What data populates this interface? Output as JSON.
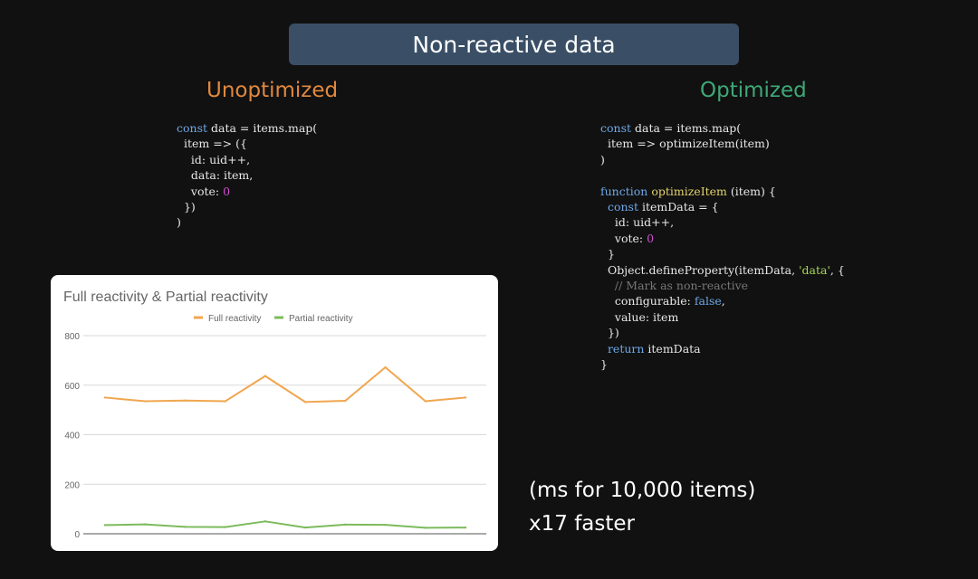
{
  "slide": {
    "title": "Non-reactive data",
    "left_heading": "Unoptimized",
    "right_heading": "Optimized",
    "note_units": "(ms for 10,000 items)",
    "note_speedup": "x17 faster"
  },
  "code": {
    "unoptimized": [
      [
        {
          "t": "const",
          "c": "kw"
        },
        {
          "t": " data = items.map("
        }
      ],
      [
        {
          "t": "  item => ({"
        }
      ],
      [
        {
          "t": "    id: uid++,"
        }
      ],
      [
        {
          "t": "    data: item,"
        }
      ],
      [
        {
          "t": "    vote: "
        },
        {
          "t": "0",
          "c": "num"
        }
      ],
      [
        {
          "t": "  })"
        }
      ],
      [
        {
          "t": ")"
        }
      ]
    ],
    "optimized": [
      [
        {
          "t": "const",
          "c": "kw"
        },
        {
          "t": " data = items.map("
        }
      ],
      [
        {
          "t": "  item => optimizeItem(item)"
        }
      ],
      [
        {
          "t": ")"
        }
      ],
      [
        {
          "t": ""
        }
      ],
      [
        {
          "t": "function",
          "c": "kw"
        },
        {
          "t": " "
        },
        {
          "t": "optimizeItem",
          "c": "fn"
        },
        {
          "t": " (item) {"
        }
      ],
      [
        {
          "t": "  "
        },
        {
          "t": "const",
          "c": "kw"
        },
        {
          "t": " itemData = {"
        }
      ],
      [
        {
          "t": "    id: uid++,"
        }
      ],
      [
        {
          "t": "    vote: "
        },
        {
          "t": "0",
          "c": "num"
        }
      ],
      [
        {
          "t": "  }"
        }
      ],
      [
        {
          "t": "  Object.defineProperty(itemData, "
        },
        {
          "t": "'data'",
          "c": "str"
        },
        {
          "t": ", {"
        }
      ],
      [
        {
          "t": "    // Mark as non-reactive",
          "c": "cmt"
        }
      ],
      [
        {
          "t": "    configurable: "
        },
        {
          "t": "false",
          "c": "bool"
        },
        {
          "t": ","
        }
      ],
      [
        {
          "t": "    value: item"
        }
      ],
      [
        {
          "t": "  })"
        }
      ],
      [
        {
          "t": "  "
        },
        {
          "t": "return",
          "c": "kw"
        },
        {
          "t": " itemData"
        }
      ],
      [
        {
          "t": "}"
        }
      ]
    ]
  },
  "colors": {
    "full": "#f0a64f",
    "partial": "#7cbb5c",
    "unoptimized_heading": "#e0883e",
    "optimized_heading": "#3fa877"
  },
  "chart_data": {
    "type": "line",
    "title": "Full reactivity & Partial reactivity",
    "x": [
      1,
      2,
      3,
      4,
      5,
      6,
      7,
      8,
      9,
      10
    ],
    "series": [
      {
        "name": "Full reactivity",
        "values": [
          550,
          535,
          538,
          535,
          637,
          532,
          537,
          672,
          535,
          550
        ]
      },
      {
        "name": "Partial reactivity",
        "values": [
          35,
          38,
          28,
          27,
          50,
          25,
          37,
          36,
          24,
          25
        ]
      }
    ],
    "yticks": [
      "0",
      "200",
      "400",
      "600",
      "800"
    ],
    "ylim": [
      0,
      800
    ],
    "grid": true,
    "legend": "top-center"
  }
}
